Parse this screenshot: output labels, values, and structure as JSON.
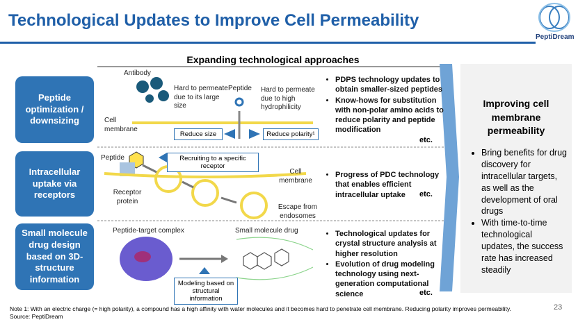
{
  "header": {
    "title": "Technological Updates to Improve Cell Permeability",
    "logo": "PeptiDream"
  },
  "section_title": "Expanding technological approaches",
  "rows": [
    {
      "label": "Peptide optimization / downsizing",
      "diagram": {
        "antibody": "Antibody",
        "antibody_note": "Hard to permeate due to its large size",
        "peptide": "Peptide",
        "peptide_note": "Hard to permeate due to high hydrophilicity",
        "membrane": "Cell membrane",
        "box1": "Reduce size",
        "box2": "Reduce polarity¹"
      },
      "bullets": [
        "PDPS technology updates to obtain smaller-sized peptides",
        "Know-hows for substitution with non-polar amino acids to reduce polarity and peptide modification"
      ],
      "etc": "etc."
    },
    {
      "label": "Intracellular uptake via receptors",
      "diagram": {
        "peptide": "Peptide",
        "box1": "Recruiting to a specific receptor",
        "membrane": "Cell membrane",
        "receptor": "Receptor protein",
        "escape": "Escape from endosomes"
      },
      "bullets": [
        "Progress of PDC technology that enables efficient intracellular uptake"
      ],
      "etc": "etc."
    },
    {
      "label": "Small molecule drug design based on 3D-structure information",
      "diagram": {
        "complex": "Peptide-target complex",
        "drug": "Small molecule drug",
        "box1": "Modeling based on structural information"
      },
      "bullets": [
        "Technological updates for crystal structure analysis at higher resolution",
        "Evolution of drug modeling technology using next-generation computational science"
      ],
      "etc": "etc."
    }
  ],
  "panel": {
    "title": "Improving cell membrane permeability",
    "bullets": [
      "Bring benefits for drug discovery for intracellular targets, as well as the development of oral drugs",
      "With time-to-time technological updates, the success rate has increased steadily"
    ]
  },
  "footer": {
    "note": "Note 1: With an electric charge (= high polarity), a compound has a high affinity with water molecules and it becomes hard to penetrate cell membrane. Reducing polarity improves permeability.",
    "source": "Source: PeptiDream",
    "page": "23"
  }
}
